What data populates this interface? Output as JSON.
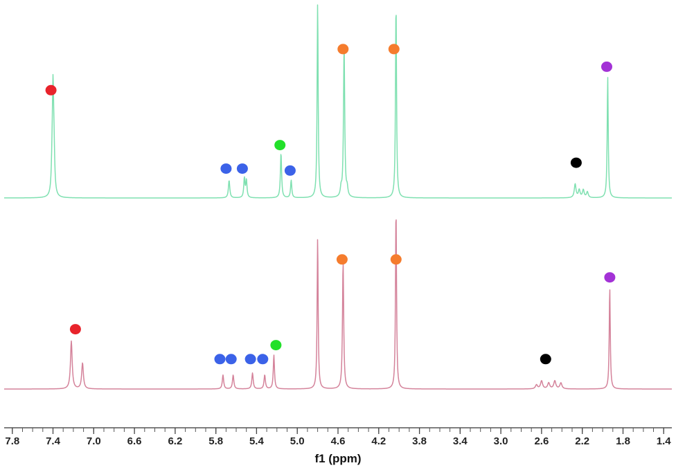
{
  "chart_data": {
    "type": "line",
    "title": "",
    "xlabel": "f1 (ppm)",
    "ylabel": "",
    "xlim": [
      7.88,
      1.32
    ],
    "x_reversed": true,
    "x_ticks": [
      "7.8",
      "7.4",
      "7.0",
      "6.6",
      "6.2",
      "5.8",
      "5.4",
      "5.0",
      "4.6",
      "4.2",
      "3.8",
      "3.4",
      "3.0",
      "2.6",
      "2.2",
      "1.8",
      "1.4"
    ],
    "grid": false,
    "legend": "none",
    "colors": {
      "spectrum_top": "#7ee0b0",
      "spectrum_bottom": "#d4829a",
      "axis": "#555555",
      "marker_red": "#e8232b",
      "marker_blue": "#3b62e8",
      "marker_green": "#22e02a",
      "marker_orange": "#f57c2d",
      "marker_black": "#000000",
      "marker_purple": "#a332d6"
    },
    "series": [
      {
        "color": "#7ee0b0",
        "peaks": [
          {
            "ppm": 7.4,
            "height": 0.53,
            "width": 0.008
          },
          {
            "ppm": 7.39,
            "height": 0.16,
            "width": 0.008
          },
          {
            "ppm": 7.41,
            "height": 0.1,
            "width": 0.008
          },
          {
            "ppm": 5.67,
            "height": 0.09,
            "width": 0.008
          },
          {
            "ppm": 5.52,
            "height": 0.1,
            "width": 0.007
          },
          {
            "ppm": 5.5,
            "height": 0.09,
            "width": 0.007
          },
          {
            "ppm": 5.16,
            "height": 0.23,
            "width": 0.007
          },
          {
            "ppm": 5.06,
            "height": 0.09,
            "width": 0.007
          },
          {
            "ppm": 4.8,
            "height": 1.0,
            "width": 0.006
          },
          {
            "ppm": 4.54,
            "height": 0.78,
            "width": 0.007
          },
          {
            "ppm": 4.57,
            "height": 0.04,
            "width": 0.008
          },
          {
            "ppm": 4.51,
            "height": 0.04,
            "width": 0.008
          },
          {
            "ppm": 4.03,
            "height": 1.0,
            "width": 0.006
          },
          {
            "ppm": 2.27,
            "height": 0.07,
            "width": 0.01
          },
          {
            "ppm": 2.23,
            "height": 0.04,
            "width": 0.01
          },
          {
            "ppm": 2.19,
            "height": 0.04,
            "width": 0.01
          },
          {
            "ppm": 2.15,
            "height": 0.03,
            "width": 0.01
          },
          {
            "ppm": 1.95,
            "height": 0.62,
            "width": 0.006
          }
        ]
      },
      {
        "color": "#d4829a",
        "peaks": [
          {
            "ppm": 7.22,
            "height": 0.24,
            "width": 0.01
          },
          {
            "ppm": 7.11,
            "height": 0.13,
            "width": 0.01
          },
          {
            "ppm": 5.73,
            "height": 0.07,
            "width": 0.008
          },
          {
            "ppm": 5.63,
            "height": 0.07,
            "width": 0.008
          },
          {
            "ppm": 5.44,
            "height": 0.08,
            "width": 0.008
          },
          {
            "ppm": 5.32,
            "height": 0.07,
            "width": 0.008
          },
          {
            "ppm": 5.23,
            "height": 0.17,
            "width": 0.007
          },
          {
            "ppm": 4.8,
            "height": 0.76,
            "width": 0.006
          },
          {
            "ppm": 4.55,
            "height": 0.64,
            "width": 0.007
          },
          {
            "ppm": 4.03,
            "height": 0.91,
            "width": 0.006
          },
          {
            "ppm": 2.65,
            "height": 0.02,
            "width": 0.012
          },
          {
            "ppm": 2.6,
            "height": 0.04,
            "width": 0.012
          },
          {
            "ppm": 2.53,
            "height": 0.03,
            "width": 0.012
          },
          {
            "ppm": 2.47,
            "height": 0.04,
            "width": 0.012
          },
          {
            "ppm": 2.41,
            "height": 0.03,
            "width": 0.012
          },
          {
            "ppm": 1.93,
            "height": 0.51,
            "width": 0.006
          }
        ]
      }
    ],
    "annotations": [
      {
        "trace": 0,
        "ppm": 7.42,
        "level": 0.55,
        "color": "#e8232b"
      },
      {
        "trace": 0,
        "ppm": 5.7,
        "level": 0.15,
        "color": "#3b62e8"
      },
      {
        "trace": 0,
        "ppm": 5.54,
        "level": 0.15,
        "color": "#3b62e8"
      },
      {
        "trace": 0,
        "ppm": 5.17,
        "level": 0.27,
        "color": "#22e02a"
      },
      {
        "trace": 0,
        "ppm": 5.07,
        "level": 0.14,
        "color": "#3b62e8"
      },
      {
        "trace": 0,
        "ppm": 4.55,
        "level": 0.76,
        "color": "#f57c2d"
      },
      {
        "trace": 0,
        "ppm": 4.05,
        "level": 0.76,
        "color": "#f57c2d"
      },
      {
        "trace": 0,
        "ppm": 2.26,
        "level": 0.18,
        "color": "#000000"
      },
      {
        "trace": 0,
        "ppm": 1.96,
        "level": 0.67,
        "color": "#a332d6"
      },
      {
        "trace": 1,
        "ppm": 7.18,
        "level": 0.3,
        "color": "#e8232b"
      },
      {
        "trace": 1,
        "ppm": 5.76,
        "level": 0.15,
        "color": "#3b62e8"
      },
      {
        "trace": 1,
        "ppm": 5.65,
        "level": 0.15,
        "color": "#3b62e8"
      },
      {
        "trace": 1,
        "ppm": 5.46,
        "level": 0.15,
        "color": "#3b62e8"
      },
      {
        "trace": 1,
        "ppm": 5.34,
        "level": 0.15,
        "color": "#3b62e8"
      },
      {
        "trace": 1,
        "ppm": 5.21,
        "level": 0.22,
        "color": "#22e02a"
      },
      {
        "trace": 1,
        "ppm": 4.56,
        "level": 0.65,
        "color": "#f57c2d"
      },
      {
        "trace": 1,
        "ppm": 4.03,
        "level": 0.65,
        "color": "#f57c2d"
      },
      {
        "trace": 1,
        "ppm": 2.56,
        "level": 0.15,
        "color": "#000000"
      },
      {
        "trace": 1,
        "ppm": 1.93,
        "level": 0.56,
        "color": "#a332d6"
      }
    ]
  }
}
